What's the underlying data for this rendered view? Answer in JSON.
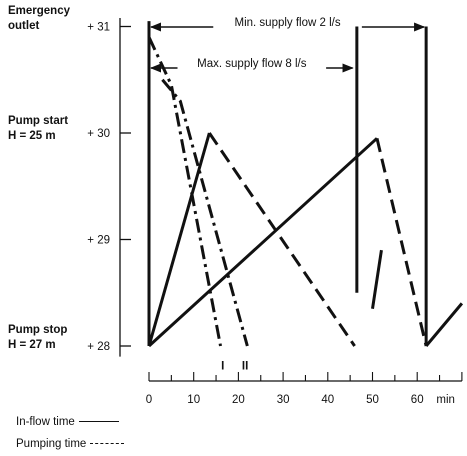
{
  "chart_data": {
    "type": "line",
    "title": "",
    "xlabel": "",
    "ylabel": "",
    "x_unit": "min",
    "xlim": [
      0,
      70
    ],
    "ylim": [
      28,
      31
    ],
    "x_ticks": [
      "0",
      "10",
      "20",
      "30",
      "40",
      "50",
      "60"
    ],
    "x_unit_label": "min",
    "y_ticks": [
      "+ 28",
      "+ 29",
      "+ 30",
      "+ 31"
    ],
    "y_side_labels": [
      {
        "lines": [
          "Emergency",
          "outlet"
        ],
        "y": 31
      },
      {
        "lines": [
          "Pump start",
          "H = 25 m"
        ],
        "y": 30
      },
      {
        "lines": [
          "Pump stop",
          "H = 27 m"
        ],
        "y": 28
      }
    ],
    "annotations": [
      {
        "text": "Min. supply flow 2 l/s",
        "x_from": 0,
        "x_to": 62
      },
      {
        "text": "Max. supply flow 8 l/s",
        "x_from": 0,
        "x_to": 46
      }
    ],
    "curve_markers": [
      "I",
      "II"
    ],
    "legend": [
      {
        "label": "In-flow time",
        "style": "solid"
      },
      {
        "label": "Pumping time",
        "style": "dashed"
      }
    ],
    "series": [
      {
        "style": "solid",
        "x": [
          0,
          13.5
        ],
        "y": [
          28,
          30
        ]
      },
      {
        "style": "solid",
        "x": [
          0,
          51
        ],
        "y": [
          28,
          29.95
        ]
      },
      {
        "style": "solid",
        "x": [
          0,
          0
        ],
        "y": [
          28,
          31.05
        ]
      },
      {
        "style": "solid",
        "x": [
          46.5,
          46.5
        ],
        "y": [
          28.5,
          31
        ]
      },
      {
        "style": "solid",
        "x": [
          62,
          62
        ],
        "y": [
          28,
          31
        ]
      },
      {
        "style": "solid",
        "x": [
          50,
          52
        ],
        "y": [
          28.35,
          28.9
        ]
      },
      {
        "style": "solid",
        "x": [
          62,
          70
        ],
        "y": [
          28,
          28.4
        ]
      },
      {
        "style": "dashed",
        "x": [
          13.5,
          46
        ],
        "y": [
          30,
          28
        ]
      },
      {
        "style": "dashed",
        "x": [
          51,
          62
        ],
        "y": [
          29.95,
          28
        ]
      },
      {
        "style": "dashdot",
        "x": [
          0,
          5,
          16
        ],
        "y": [
          30.9,
          30.45,
          28
        ]
      },
      {
        "style": "dashdot",
        "x": [
          3,
          7,
          22
        ],
        "y": [
          30.5,
          30.3,
          28
        ]
      }
    ]
  }
}
